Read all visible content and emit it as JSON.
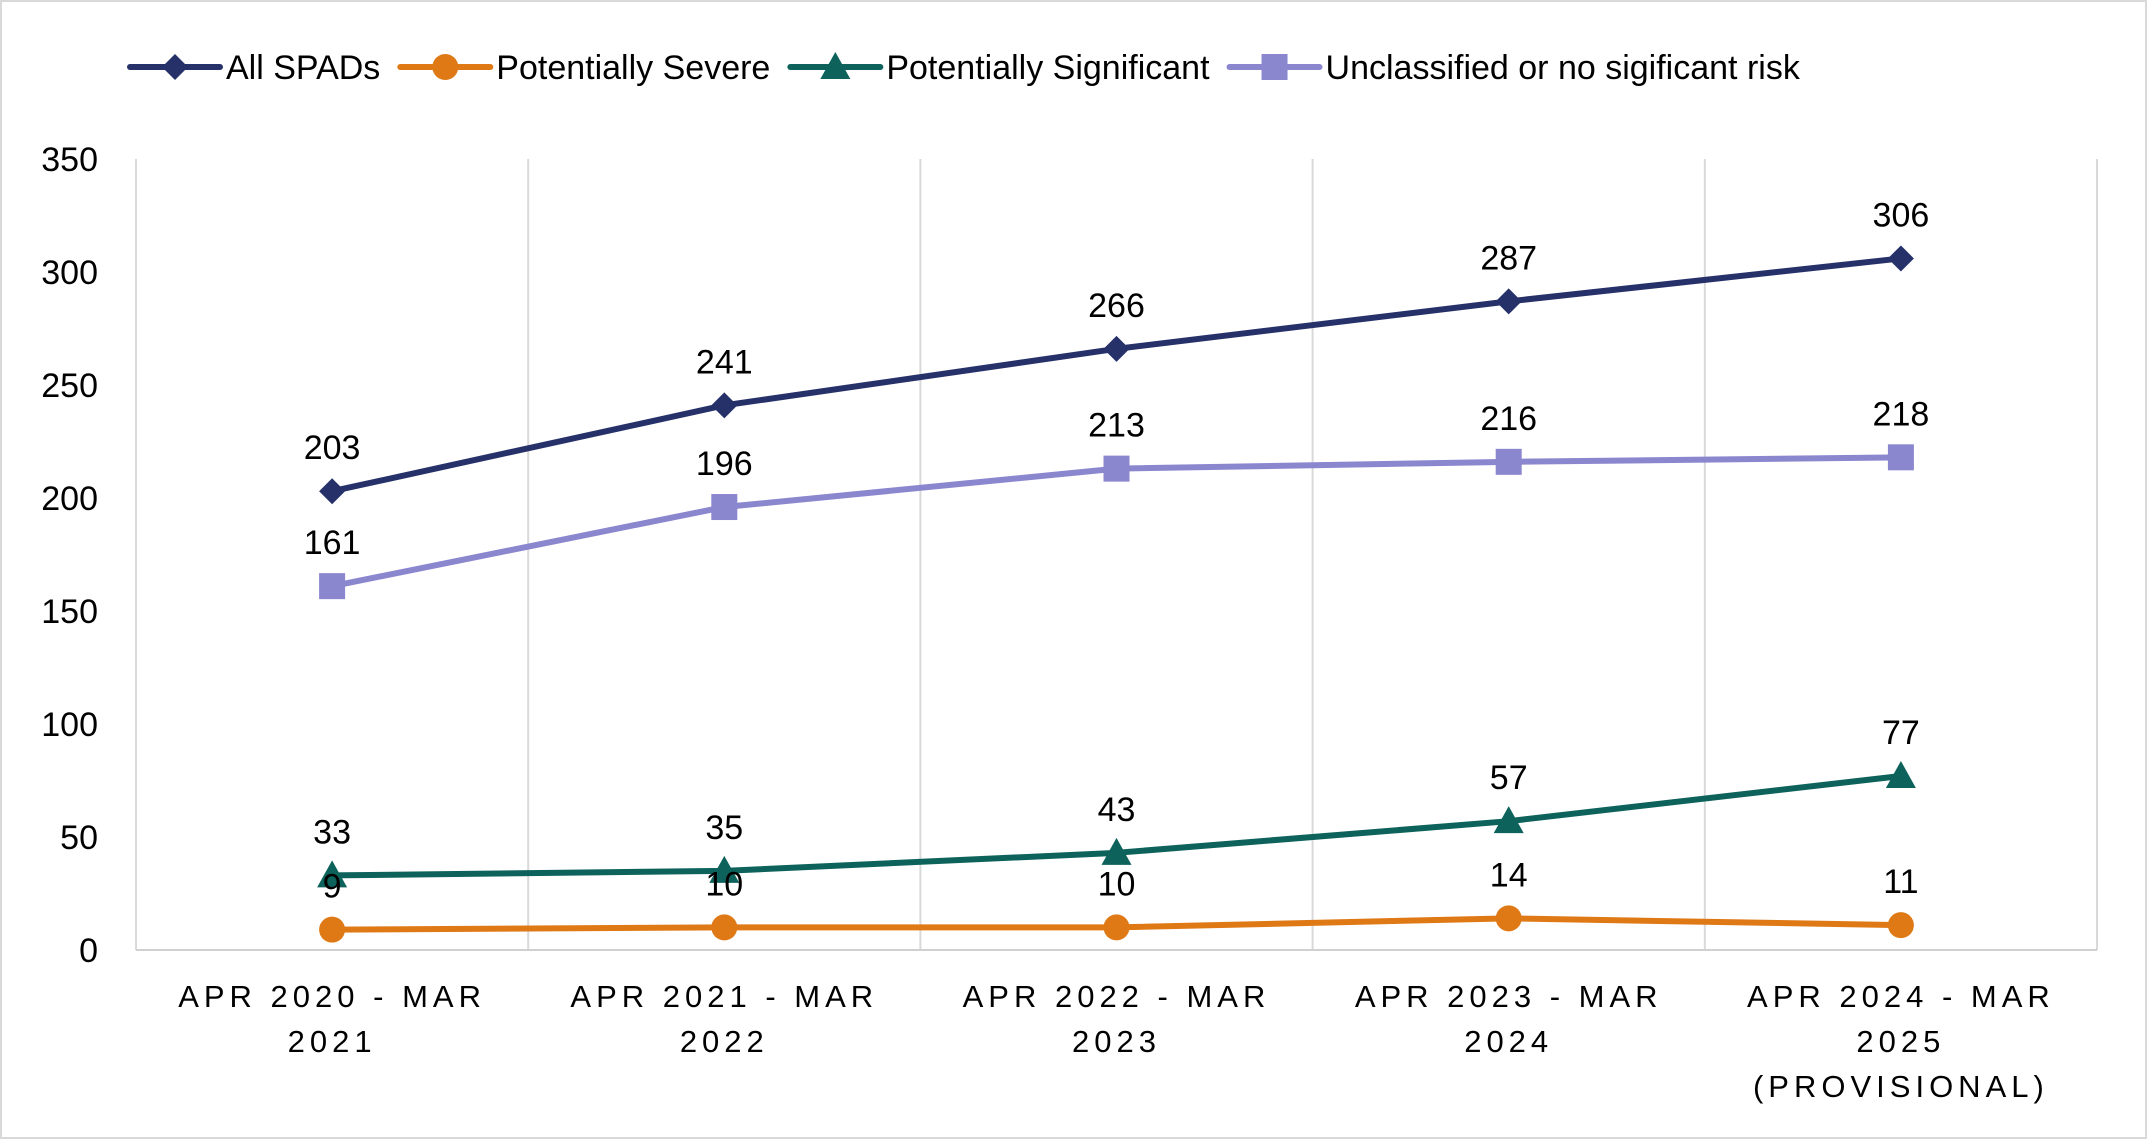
{
  "chart_data": {
    "type": "line",
    "title": "",
    "xlabel": "",
    "ylabel": "",
    "ylim": [
      0,
      350
    ],
    "y_ticks": [
      "0",
      "50",
      "100",
      "150",
      "200",
      "250",
      "300",
      "350"
    ],
    "categories": [
      [
        "APR 2020 - MAR",
        "2021"
      ],
      [
        "APR 2021 - MAR",
        "2022"
      ],
      [
        "APR 2022 - MAR",
        "2023"
      ],
      [
        "APR 2023 - MAR",
        "2024"
      ],
      [
        "APR 2024 - MAR",
        "2025",
        "(PROVISIONAL)"
      ]
    ],
    "grid": "vertical",
    "legend_position": "top",
    "series": [
      {
        "name": "All SPADs",
        "values": [
          203,
          241,
          266,
          287,
          306
        ],
        "color": "#263169",
        "marker": "diamond"
      },
      {
        "name": "Potentially  Severe",
        "values": [
          9,
          10,
          10,
          14,
          11
        ],
        "color": "#df7916",
        "marker": "circle"
      },
      {
        "name": "Potentially Significant",
        "values": [
          33,
          35,
          43,
          57,
          77
        ],
        "color": "#0d625b",
        "marker": "triangle"
      },
      {
        "name": "Unclassified or no sigificant risk",
        "values": [
          161,
          196,
          213,
          216,
          218
        ],
        "color": "#8a87cf",
        "marker": "square"
      }
    ]
  }
}
